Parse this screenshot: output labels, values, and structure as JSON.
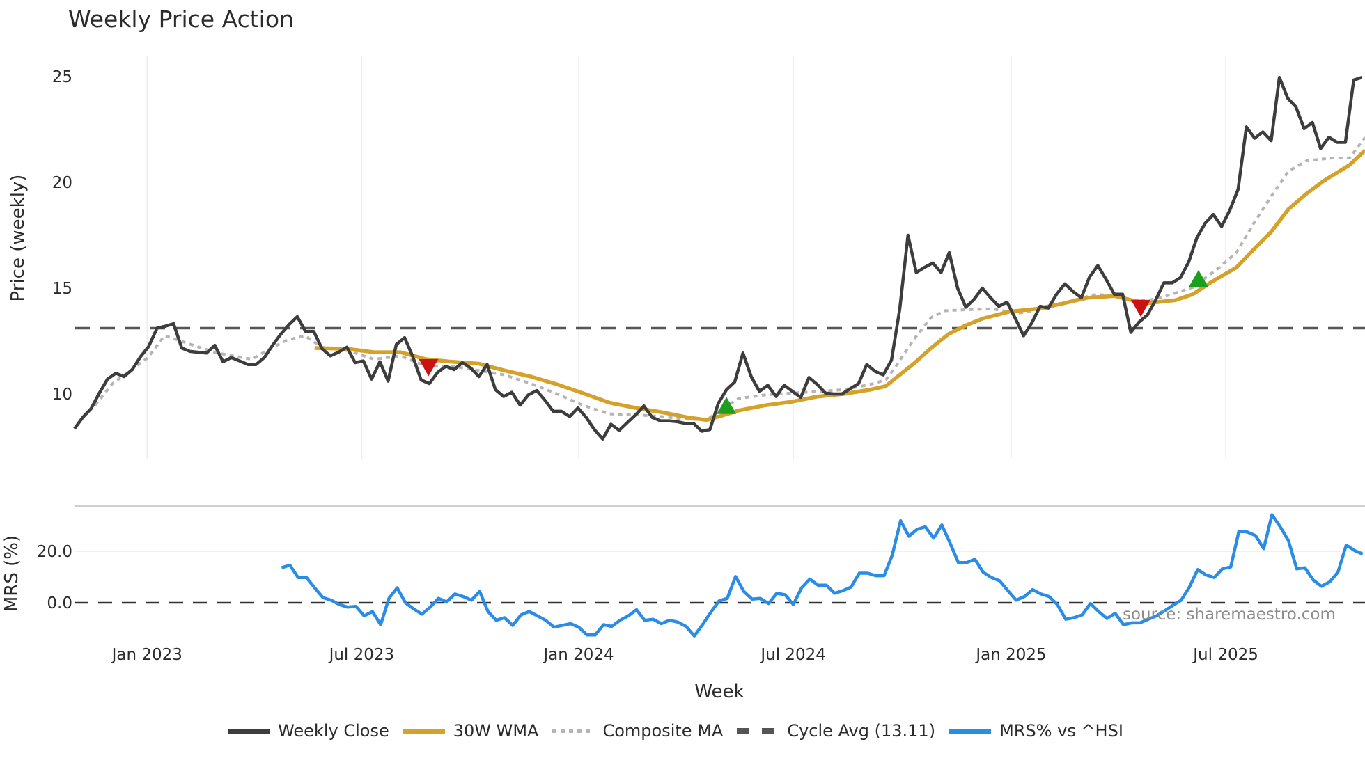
{
  "title": "Weekly Price Action",
  "source_label": "source: sharemaestro.com",
  "colors": {
    "weekly_close": "#3d3d3d",
    "wma": "#d4a22a",
    "composite_ma": "#b5b5b5",
    "cycle_avg": "#555555",
    "mrs": "#2b8ce6",
    "buy_marker": "#1e9e1e",
    "sell_marker": "#cc1111",
    "grid": "#ececf0"
  },
  "chart_data": [
    {
      "type": "line",
      "panel": "price",
      "title": "Weekly Price Action",
      "xlabel": "Week",
      "ylabel": "Price (weekly)",
      "yticks": [
        10,
        15,
        20,
        25
      ],
      "ylim": [
        7.2,
        25.9
      ],
      "xticks": [
        "Jan 2023",
        "Jul 2023",
        "Jan 2024",
        "Jul 2024",
        "Jan 2025",
        "Jul 2025"
      ],
      "xtick_week_index": [
        8.8,
        34.8,
        61.1,
        87.1,
        113.5,
        139.5
      ],
      "x_range_weeks": [
        0,
        156.5
      ],
      "grid": {
        "x": true,
        "y": false
      },
      "series": [
        {
          "name": "Weekly Close",
          "start_index": 0,
          "values": [
            8.36,
            8.89,
            9.3,
            10.04,
            10.7,
            10.98,
            10.82,
            11.15,
            11.76,
            12.25,
            13.11,
            13.2,
            13.32,
            12.17,
            12.01,
            11.97,
            11.93,
            12.3,
            11.52,
            11.72,
            11.56,
            11.39,
            11.39,
            11.72,
            12.3,
            12.83,
            13.28,
            13.65,
            12.95,
            12.95,
            12.13,
            11.8,
            11.97,
            12.21,
            11.48,
            11.56,
            10.7,
            11.52,
            10.61,
            12.34,
            12.66,
            11.76,
            10.66,
            10.49,
            11.02,
            11.31,
            11.15,
            11.48,
            11.23,
            10.82,
            11.39,
            10.2,
            9.88,
            10.08,
            9.47,
            9.96,
            10.16,
            9.71,
            9.18,
            9.18,
            8.93,
            9.34,
            8.89,
            8.32,
            7.87,
            8.57,
            8.28,
            8.65,
            9.02,
            9.43,
            8.89,
            8.73,
            8.73,
            8.69,
            8.61,
            8.61,
            8.24,
            8.32,
            9.55,
            10.2,
            10.57,
            11.93,
            10.82,
            10.12,
            10.41,
            9.88,
            10.41,
            10.12,
            9.84,
            10.78,
            10.45,
            10.04,
            10.0,
            10.0,
            10.25,
            10.49,
            11.39,
            11.07,
            10.9,
            11.6,
            14.02,
            17.5,
            15.74,
            15.98,
            16.19,
            15.74,
            16.68,
            15.0,
            14.1,
            14.47,
            15.0,
            14.55,
            14.14,
            14.34,
            13.57,
            12.75,
            13.36,
            14.14,
            14.06,
            14.71,
            15.2,
            14.84,
            14.55,
            15.53,
            16.07,
            15.41,
            14.71,
            14.71,
            12.91,
            13.4,
            13.73,
            14.43,
            15.25,
            15.25,
            15.49,
            16.23,
            17.38,
            18.07,
            18.48,
            17.91,
            18.69,
            19.67,
            22.62,
            22.09,
            22.38,
            21.97,
            24.96,
            23.98,
            23.57,
            22.54,
            22.83,
            21.6,
            22.13,
            21.89,
            21.89,
            24.84,
            24.96
          ]
        },
        {
          "name": "30W WMA",
          "points": [
            [
              29.1,
              12.17
            ],
            [
              33.1,
              12.13
            ],
            [
              36.3,
              11.97
            ],
            [
              39.5,
              11.97
            ],
            [
              42.6,
              11.64
            ],
            [
              45.8,
              11.52
            ],
            [
              49.0,
              11.43
            ],
            [
              52.1,
              11.11
            ],
            [
              55.3,
              10.82
            ],
            [
              58.5,
              10.45
            ],
            [
              61.6,
              10.04
            ],
            [
              64.8,
              9.59
            ],
            [
              68.0,
              9.34
            ],
            [
              71.1,
              9.14
            ],
            [
              74.3,
              8.89
            ],
            [
              76.6,
              8.77
            ],
            [
              78.5,
              8.98
            ],
            [
              80.5,
              9.22
            ],
            [
              83.8,
              9.47
            ],
            [
              86.9,
              9.63
            ],
            [
              90.1,
              9.88
            ],
            [
              93.2,
              10.0
            ],
            [
              96.4,
              10.2
            ],
            [
              98.3,
              10.37
            ],
            [
              99.6,
              10.78
            ],
            [
              101.7,
              11.43
            ],
            [
              103.8,
              12.17
            ],
            [
              105.9,
              12.83
            ],
            [
              108.0,
              13.24
            ],
            [
              110.1,
              13.57
            ],
            [
              113.3,
              13.89
            ],
            [
              116.5,
              14.02
            ],
            [
              119.6,
              14.26
            ],
            [
              122.8,
              14.55
            ],
            [
              126.0,
              14.63
            ],
            [
              128.1,
              14.43
            ],
            [
              130.2,
              14.3
            ],
            [
              133.4,
              14.43
            ],
            [
              135.5,
              14.71
            ],
            [
              137.6,
              15.25
            ],
            [
              140.8,
              15.98
            ],
            [
              142.9,
              16.84
            ],
            [
              145.0,
              17.66
            ],
            [
              147.1,
              18.73
            ],
            [
              149.3,
              19.47
            ],
            [
              151.4,
              20.08
            ],
            [
              154.5,
              20.82
            ],
            [
              156.4,
              21.52
            ]
          ]
        },
        {
          "name": "Composite MA",
          "points": [
            [
              2.5,
              9.47
            ],
            [
              4.6,
              10.49
            ],
            [
              6.8,
              11.11
            ],
            [
              8.9,
              11.72
            ],
            [
              10.9,
              12.75
            ],
            [
              12.0,
              12.62
            ],
            [
              14.1,
              12.34
            ],
            [
              17.3,
              11.93
            ],
            [
              21.5,
              11.64
            ],
            [
              23.7,
              12.13
            ],
            [
              25.7,
              12.54
            ],
            [
              27.9,
              12.75
            ],
            [
              30.0,
              12.21
            ],
            [
              33.1,
              12.05
            ],
            [
              36.3,
              11.64
            ],
            [
              39.5,
              11.8
            ],
            [
              42.6,
              11.31
            ],
            [
              45.8,
              11.31
            ],
            [
              49.0,
              11.11
            ],
            [
              52.1,
              10.9
            ],
            [
              55.3,
              10.49
            ],
            [
              58.5,
              10.0
            ],
            [
              61.6,
              9.47
            ],
            [
              64.8,
              9.06
            ],
            [
              68.0,
              9.02
            ],
            [
              71.1,
              8.93
            ],
            [
              74.3,
              8.81
            ],
            [
              76.6,
              8.77
            ],
            [
              78.5,
              9.3
            ],
            [
              80.5,
              9.79
            ],
            [
              83.8,
              9.96
            ],
            [
              86.9,
              10.04
            ],
            [
              90.1,
              10.12
            ],
            [
              93.2,
              10.2
            ],
            [
              96.4,
              10.45
            ],
            [
              98.3,
              10.66
            ],
            [
              99.6,
              11.35
            ],
            [
              101.7,
              12.58
            ],
            [
              103.8,
              13.61
            ],
            [
              105.4,
              13.93
            ],
            [
              108.0,
              13.98
            ],
            [
              111.2,
              14.02
            ],
            [
              114.3,
              13.81
            ],
            [
              117.5,
              14.02
            ],
            [
              120.7,
              14.39
            ],
            [
              123.8,
              14.71
            ],
            [
              125.9,
              14.63
            ],
            [
              128.1,
              14.39
            ],
            [
              130.2,
              14.43
            ],
            [
              132.3,
              14.63
            ],
            [
              135.5,
              15.04
            ],
            [
              138.6,
              15.94
            ],
            [
              140.8,
              16.68
            ],
            [
              142.9,
              18.07
            ],
            [
              145.0,
              19.34
            ],
            [
              147.1,
              20.53
            ],
            [
              149.3,
              21.02
            ],
            [
              152.4,
              21.15
            ],
            [
              154.5,
              21.15
            ],
            [
              156.4,
              22.13
            ]
          ]
        },
        {
          "name": "Cycle Avg (13.11)",
          "constant": 13.11
        }
      ],
      "markers": [
        {
          "type": "sell",
          "shape": "triangle-down",
          "week_index": 42.9,
          "value": 11.3
        },
        {
          "type": "buy",
          "shape": "triangle-up",
          "week_index": 79.0,
          "value": 9.4
        },
        {
          "type": "sell",
          "shape": "triangle-down",
          "week_index": 129.2,
          "value": 14.1
        },
        {
          "type": "buy",
          "shape": "triangle-up",
          "week_index": 136.2,
          "value": 15.4
        }
      ]
    },
    {
      "type": "line",
      "panel": "mrs",
      "ylabel": "MRS (%)",
      "yticks": [
        0.0,
        20.0
      ],
      "ytick_labels": [
        "0.0",
        "20.0"
      ],
      "ylim": [
        -16,
        40
      ],
      "zero_line": "dashed",
      "series": [
        {
          "name": "MRS% vs ^HSI",
          "start_index": 25.1,
          "values": [
            13.6,
            14.6,
            9.8,
            9.8,
            5.8,
            2.0,
            1.0,
            -0.7,
            -1.7,
            -1.4,
            -5.1,
            -3.4,
            -8.5,
            1.7,
            5.8,
            0.0,
            -2.4,
            -4.4,
            -1.7,
            1.7,
            0.3,
            3.4,
            2.4,
            1.0,
            4.4,
            -3.4,
            -6.8,
            -5.8,
            -8.8,
            -4.7,
            -3.4,
            -5.1,
            -6.8,
            -9.5,
            -8.8,
            -8.1,
            -9.5,
            -12.5,
            -12.5,
            -8.5,
            -9.2,
            -6.8,
            -5.1,
            -2.7,
            -6.8,
            -6.4,
            -8.1,
            -6.8,
            -7.5,
            -9.2,
            -12.9,
            -8.5,
            -3.7,
            0.7,
            1.7,
            10.2,
            4.4,
            1.4,
            1.7,
            -0.3,
            3.7,
            3.1,
            -0.7,
            5.8,
            9.2,
            6.8,
            6.8,
            3.7,
            4.7,
            6.1,
            11.5,
            11.5,
            10.5,
            10.5,
            18.6,
            31.9,
            25.8,
            28.5,
            29.5,
            25.1,
            30.2,
            23.1,
            15.6,
            15.6,
            16.9,
            11.9,
            9.8,
            8.5,
            4.7,
            1.0,
            2.4,
            5.1,
            3.4,
            2.4,
            -0.7,
            -6.4,
            -5.8,
            -4.7,
            -0.3,
            -3.4,
            -6.1,
            -4.1,
            -8.5,
            -7.8,
            -7.8,
            -6.4,
            -5.1,
            -3.1,
            -1.0,
            1.0,
            6.1,
            12.9,
            10.8,
            9.8,
            13.2,
            13.9,
            27.8,
            27.5,
            26.1,
            21.0,
            34.2,
            29.5,
            24.1,
            13.2,
            13.6,
            8.8,
            6.4,
            8.1,
            11.9,
            22.4,
            20.3,
            18.9
          ]
        }
      ]
    }
  ],
  "legend": [
    {
      "label": "Weekly Close",
      "style": "solid",
      "color": "#3d3d3d"
    },
    {
      "label": "30W WMA",
      "style": "solid",
      "color": "#d4a22a"
    },
    {
      "label": "Composite MA",
      "style": "dotted",
      "color": "#b5b5b5"
    },
    {
      "label": "Cycle Avg (13.11)",
      "style": "dashed",
      "color": "#555555"
    },
    {
      "label": "MRS% vs ^HSI",
      "style": "solid",
      "color": "#2b8ce6"
    }
  ]
}
